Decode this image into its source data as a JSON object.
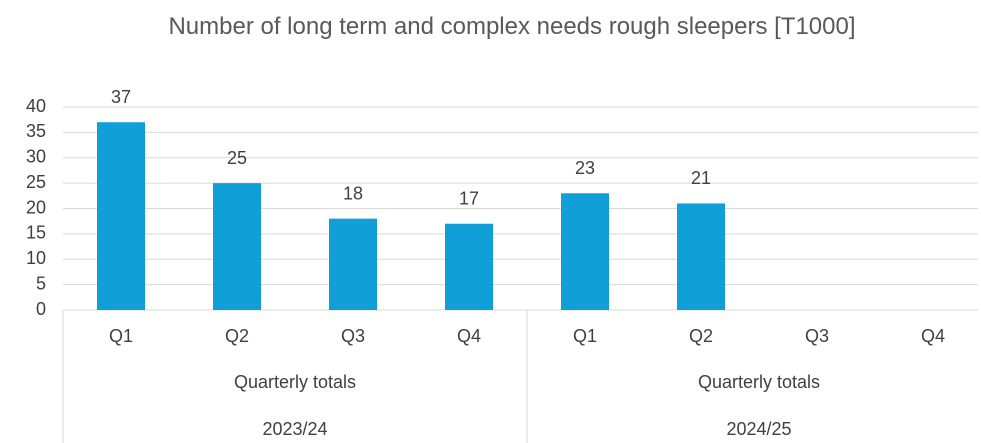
{
  "chart_data": {
    "type": "bar",
    "title": "Number of long term and complex needs rough sleepers [T1000]",
    "groups": [
      {
        "period": "2023/24",
        "subgroup": "Quarterly totals",
        "categories": [
          "Q1",
          "Q2",
          "Q3",
          "Q4"
        ],
        "values": [
          37,
          25,
          18,
          17
        ]
      },
      {
        "period": "2024/25",
        "subgroup": "Quarterly totals",
        "categories": [
          "Q1",
          "Q2",
          "Q3",
          "Q4"
        ],
        "values": [
          23,
          21,
          null,
          null
        ]
      }
    ],
    "color": "#119fd7",
    "ylim": [
      0,
      40
    ],
    "yticks": [
      0,
      5,
      10,
      15,
      20,
      25,
      30,
      35,
      40
    ],
    "grid": true,
    "data_labels": true
  }
}
